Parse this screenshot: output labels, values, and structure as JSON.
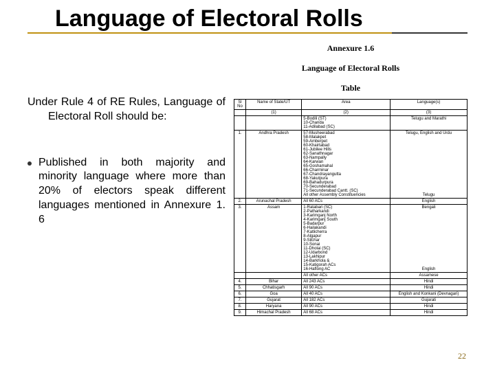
{
  "title": "Language of Electoral Rolls",
  "annexure_label": "Annexure 1.6",
  "annexure_subtitle": "Language of Electoral Rolls",
  "table_label": "Table",
  "intro": "Under Rule 4 of RE Rules, Language of Electoral Roll should be:",
  "bullet": "Published in both majority and minority language where more than 20% of electors speak different languages mentioned in Annexure 1. 6",
  "page_num": "22",
  "colors": {
    "accent": "#c09010",
    "accent2": "#333333",
    "page_num": "#8a6a1a",
    "text": "#000000",
    "bg": "#ffffff"
  },
  "table": {
    "headers": [
      "Sl No",
      "Name of State/UT",
      "Area",
      "Language(s)"
    ],
    "subhead": [
      "",
      "(1)",
      "(2)",
      "(3)"
    ],
    "rows": [
      {
        "sl": "",
        "state": "",
        "area": "5-Bodili (ST)\n10-Chanda\n11-Adilabad (SC)",
        "lang": "Telugu and Marathi"
      },
      {
        "sl": "1.",
        "state": "Andhra Pradesh",
        "area": "57-Musheerabad\n58-Malakpet\n59-Amberpet\n60-Khairtabad\n61-Jubilee Hills\n62-Sanathnagar\n63-Nampally\n64-Karwan\n65-Goshamahal\n66-Charminar\n67-Chandrayangutta\n68-Yakutpura\n69-Bahadurpura\n70-Secunderabad\n71-Secunderabad Cantt. (SC)\nAll other Assembly Constituencies",
        "lang": "Telugu, English and Urdu\n\n\n\n\n\n\n\n\n\n\n\n\n\n\nTelugu"
      },
      {
        "sl": "2.",
        "state": "Arunachal Pradesh",
        "area": "All 60 ACs",
        "lang": "English"
      },
      {
        "sl": "3.",
        "state": "Assam",
        "area": "1-Ratabari (SC)\n2-Patharkandi\n3-Karimganj North\n4-Karimganj South\n5-Badarpur\n6-Hailakandi\n7-Katlicherra\n8-Algapur\n9-Silchar\n10-Sonai\n11-Dholai (SC)\n12-Udarbond\n13-Lakhipur\n14-Barkhola &\n15-Katigorah ACs\n16-Haflong AC",
        "lang": "Bengali\n\n\n\n\n\n\n\n\n\n\n\n\n\n\nEnglish"
      },
      {
        "sl": "",
        "state": "",
        "area": "All other ACs",
        "lang": "Assamese"
      },
      {
        "sl": "4.",
        "state": "Bihar",
        "area": "All 243 ACs",
        "lang": "Hindi"
      },
      {
        "sl": "5.",
        "state": "Chhatisgarh",
        "area": "All 90 ACs",
        "lang": "Hindi"
      },
      {
        "sl": "6.",
        "state": "Goa",
        "area": "All 40 ACs",
        "lang": "English and Konkani (Devnagari)"
      },
      {
        "sl": "7.",
        "state": "Gujarat",
        "area": "All 182 ACs",
        "lang": "Gujarati"
      },
      {
        "sl": "8.",
        "state": "Haryana",
        "area": "All 90 ACs",
        "lang": "Hindi"
      },
      {
        "sl": "9.",
        "state": "Himachal Pradesh",
        "area": "All 68 ACs",
        "lang": "Hindi"
      }
    ]
  }
}
